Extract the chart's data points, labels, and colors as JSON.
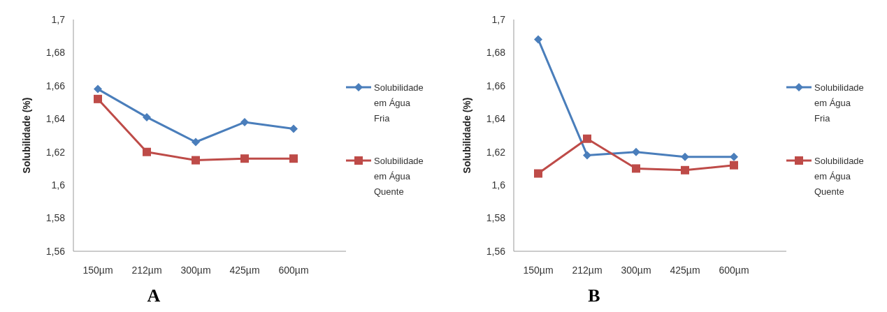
{
  "chart_data": [
    {
      "type": "line",
      "title": "A",
      "ylabel": "Solubilidade (%)",
      "categories": [
        "150µm",
        "212µm",
        "300µm",
        "425µm",
        "600µm"
      ],
      "series": [
        {
          "name": "Solubilidade em Água Fria",
          "color": "#4a7ebb",
          "marker": "diamond",
          "values": [
            1.658,
            1.641,
            1.626,
            1.638,
            1.634
          ]
        },
        {
          "name": "Solubilidade em Água Quente",
          "color": "#be4b48",
          "marker": "square",
          "values": [
            1.652,
            1.62,
            1.615,
            1.616,
            1.616
          ]
        }
      ],
      "ylim": [
        1.56,
        1.7
      ],
      "yticks": [
        {
          "value": 1.56,
          "label": "1,56"
        },
        {
          "value": 1.58,
          "label": "1,58"
        },
        {
          "value": 1.6,
          "label": "1,6"
        },
        {
          "value": 1.62,
          "label": "1,62"
        },
        {
          "value": 1.64,
          "label": "1,64"
        },
        {
          "value": 1.66,
          "label": "1,66"
        },
        {
          "value": 1.68,
          "label": "1,68"
        },
        {
          "value": 1.7,
          "label": "1,7"
        }
      ],
      "grid": false,
      "legend": "right"
    },
    {
      "type": "line",
      "title": "B",
      "ylabel": "Solubilidade (%)",
      "categories": [
        "150µm",
        "212µm",
        "300µm",
        "425µm",
        "600µm"
      ],
      "series": [
        {
          "name": "Solubilidade em Água Fria",
          "color": "#4a7ebb",
          "marker": "diamond",
          "values": [
            1.688,
            1.618,
            1.62,
            1.617,
            1.617
          ]
        },
        {
          "name": "Solubilidade em Água Quente",
          "color": "#be4b48",
          "marker": "square",
          "values": [
            1.607,
            1.628,
            1.61,
            1.609,
            1.612
          ]
        }
      ],
      "ylim": [
        1.56,
        1.7
      ],
      "yticks": [
        {
          "value": 1.56,
          "label": "1,56"
        },
        {
          "value": 1.58,
          "label": "1,58"
        },
        {
          "value": 1.6,
          "label": "1,6"
        },
        {
          "value": 1.62,
          "label": "1,62"
        },
        {
          "value": 1.64,
          "label": "1,64"
        },
        {
          "value": 1.66,
          "label": "1,66"
        },
        {
          "value": 1.68,
          "label": "1,68"
        },
        {
          "value": 1.7,
          "label": "1,7"
        }
      ],
      "grid": false,
      "legend": "right"
    }
  ]
}
